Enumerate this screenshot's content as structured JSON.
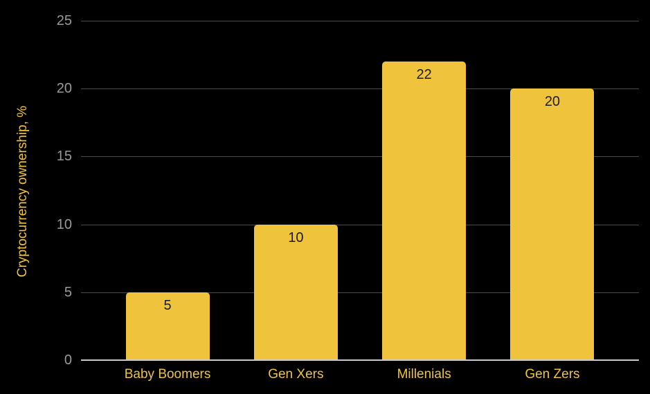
{
  "chart_data": {
    "type": "bar",
    "title": "",
    "xlabel": "",
    "ylabel": "Cryptocurrency ownership, %",
    "categories": [
      "Baby Boomers",
      "Gen Xers",
      "Millenials",
      "Gen Zers"
    ],
    "values": [
      5,
      10,
      22,
      20
    ],
    "ylim": [
      0,
      25
    ],
    "yticks": [
      0,
      5,
      10,
      15,
      20,
      25
    ],
    "grid": true,
    "legend_position": "none",
    "colors": {
      "background": "#000000",
      "bar": "#F0C33C",
      "bar_value_label": "#1C1C1C",
      "axis_title": "#F0C33C",
      "category_label": "#F0C33C",
      "tick_label": "#9A9A9A",
      "gridline": "#4B4B4B",
      "baseline": "#CBCBCB"
    }
  }
}
